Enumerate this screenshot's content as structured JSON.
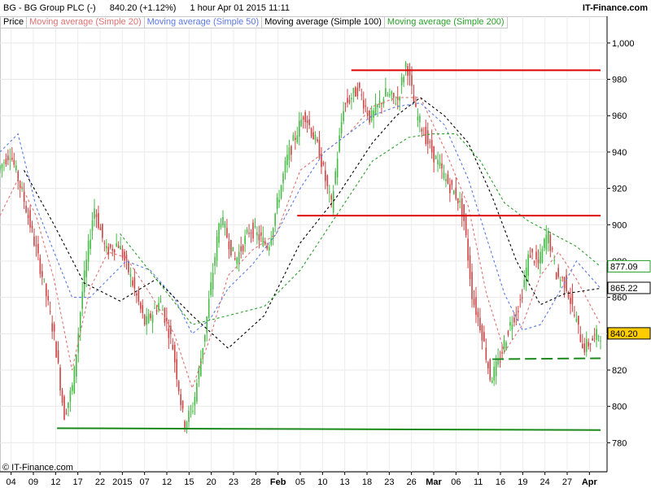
{
  "header": {
    "symbol": "BG - BG Group PLC (-)",
    "price_change": "840.20 (+1.12%)",
    "interval_date": "1 hour  Apr 01 2015 11:11",
    "source": "IT-Finance.com"
  },
  "legend": [
    {
      "label": "Price",
      "color": "#000000"
    },
    {
      "label": "Moving average (Simple 20)",
      "color": "#e07070"
    },
    {
      "label": "Moving average (Simple 50)",
      "color": "#5a78e6"
    },
    {
      "label": "Moving average (Simple 100)",
      "color": "#000000"
    },
    {
      "label": "Moving average (Simple 200)",
      "color": "#2aa02a"
    }
  ],
  "credit": "© IT-Finance.com",
  "chart_data": {
    "type": "candlestick",
    "ylim": [
      773,
      1008
    ],
    "y_ticks": [
      "780",
      "800",
      "820",
      "840",
      "860",
      "880",
      "900",
      "920",
      "940",
      "960",
      "980",
      "1,000"
    ],
    "x_ticks": [
      "04",
      "09",
      "12",
      "17",
      "22",
      "2015",
      "07",
      "12",
      "15",
      "20",
      "23",
      "28",
      "Feb",
      "05",
      "10",
      "13",
      "18",
      "23",
      "26",
      "Mar",
      "06",
      "11",
      "16",
      "19",
      "24",
      "27",
      "Apr"
    ],
    "price_path": [
      {
        "x": 0,
        "y": 930
      },
      {
        "x": 0.02,
        "y": 940
      },
      {
        "x": 0.04,
        "y": 918
      },
      {
        "x": 0.055,
        "y": 898
      },
      {
        "x": 0.075,
        "y": 870
      },
      {
        "x": 0.095,
        "y": 836
      },
      {
        "x": 0.11,
        "y": 795
      },
      {
        "x": 0.125,
        "y": 812
      },
      {
        "x": 0.14,
        "y": 862
      },
      {
        "x": 0.16,
        "y": 910
      },
      {
        "x": 0.18,
        "y": 885
      },
      {
        "x": 0.2,
        "y": 890
      },
      {
        "x": 0.22,
        "y": 872
      },
      {
        "x": 0.245,
        "y": 845
      },
      {
        "x": 0.27,
        "y": 858
      },
      {
        "x": 0.29,
        "y": 835
      },
      {
        "x": 0.31,
        "y": 790
      },
      {
        "x": 0.325,
        "y": 800
      },
      {
        "x": 0.345,
        "y": 842
      },
      {
        "x": 0.37,
        "y": 905
      },
      {
        "x": 0.395,
        "y": 880
      },
      {
        "x": 0.42,
        "y": 898
      },
      {
        "x": 0.45,
        "y": 888
      },
      {
        "x": 0.48,
        "y": 935
      },
      {
        "x": 0.51,
        "y": 962
      },
      {
        "x": 0.535,
        "y": 940
      },
      {
        "x": 0.555,
        "y": 910
      },
      {
        "x": 0.575,
        "y": 965
      },
      {
        "x": 0.6,
        "y": 975
      },
      {
        "x": 0.62,
        "y": 958
      },
      {
        "x": 0.645,
        "y": 972
      },
      {
        "x": 0.665,
        "y": 968
      },
      {
        "x": 0.68,
        "y": 990
      },
      {
        "x": 0.695,
        "y": 962
      },
      {
        "x": 0.72,
        "y": 942
      },
      {
        "x": 0.745,
        "y": 925
      },
      {
        "x": 0.765,
        "y": 915
      },
      {
        "x": 0.775,
        "y": 905
      },
      {
        "x": 0.79,
        "y": 860
      },
      {
        "x": 0.805,
        "y": 842
      },
      {
        "x": 0.82,
        "y": 815
      },
      {
        "x": 0.835,
        "y": 825
      },
      {
        "x": 0.85,
        "y": 843
      },
      {
        "x": 0.87,
        "y": 858
      },
      {
        "x": 0.885,
        "y": 885
      },
      {
        "x": 0.9,
        "y": 878
      },
      {
        "x": 0.915,
        "y": 896
      },
      {
        "x": 0.93,
        "y": 872
      },
      {
        "x": 0.945,
        "y": 868
      },
      {
        "x": 0.96,
        "y": 850
      },
      {
        "x": 0.975,
        "y": 832
      },
      {
        "x": 1,
        "y": 840
      }
    ],
    "series": [
      {
        "name": "Moving average (Simple 20)",
        "color": "#e07070",
        "dash": "3,3",
        "points": [
          {
            "x": 0,
            "y": 905
          },
          {
            "x": 0.03,
            "y": 925
          },
          {
            "x": 0.06,
            "y": 905
          },
          {
            "x": 0.09,
            "y": 870
          },
          {
            "x": 0.12,
            "y": 820
          },
          {
            "x": 0.15,
            "y": 865
          },
          {
            "x": 0.18,
            "y": 885
          },
          {
            "x": 0.21,
            "y": 882
          },
          {
            "x": 0.25,
            "y": 862
          },
          {
            "x": 0.29,
            "y": 840
          },
          {
            "x": 0.32,
            "y": 810
          },
          {
            "x": 0.35,
            "y": 838
          },
          {
            "x": 0.38,
            "y": 872
          },
          {
            "x": 0.42,
            "y": 886
          },
          {
            "x": 0.46,
            "y": 895
          },
          {
            "x": 0.5,
            "y": 930
          },
          {
            "x": 0.54,
            "y": 940
          },
          {
            "x": 0.58,
            "y": 950
          },
          {
            "x": 0.62,
            "y": 965
          },
          {
            "x": 0.66,
            "y": 970
          },
          {
            "x": 0.7,
            "y": 970
          },
          {
            "x": 0.74,
            "y": 942
          },
          {
            "x": 0.78,
            "y": 910
          },
          {
            "x": 0.81,
            "y": 862
          },
          {
            "x": 0.84,
            "y": 830
          },
          {
            "x": 0.87,
            "y": 845
          },
          {
            "x": 0.9,
            "y": 872
          },
          {
            "x": 0.93,
            "y": 885
          },
          {
            "x": 0.96,
            "y": 870
          },
          {
            "x": 1,
            "y": 845
          }
        ]
      },
      {
        "name": "Moving average (Simple 50)",
        "color": "#5a78e6",
        "dash": "3,3",
        "points": [
          {
            "x": 0,
            "y": 940
          },
          {
            "x": 0.03,
            "y": 950
          },
          {
            "x": 0.06,
            "y": 910
          },
          {
            "x": 0.09,
            "y": 885
          },
          {
            "x": 0.12,
            "y": 860
          },
          {
            "x": 0.15,
            "y": 860
          },
          {
            "x": 0.18,
            "y": 870
          },
          {
            "x": 0.21,
            "y": 880
          },
          {
            "x": 0.25,
            "y": 875
          },
          {
            "x": 0.29,
            "y": 860
          },
          {
            "x": 0.32,
            "y": 840
          },
          {
            "x": 0.35,
            "y": 848
          },
          {
            "x": 0.38,
            "y": 865
          },
          {
            "x": 0.42,
            "y": 878
          },
          {
            "x": 0.46,
            "y": 895
          },
          {
            "x": 0.5,
            "y": 920
          },
          {
            "x": 0.54,
            "y": 940
          },
          {
            "x": 0.58,
            "y": 950
          },
          {
            "x": 0.62,
            "y": 960
          },
          {
            "x": 0.66,
            "y": 965
          },
          {
            "x": 0.7,
            "y": 967
          },
          {
            "x": 0.74,
            "y": 955
          },
          {
            "x": 0.78,
            "y": 925
          },
          {
            "x": 0.81,
            "y": 893
          },
          {
            "x": 0.84,
            "y": 862
          },
          {
            "x": 0.87,
            "y": 842
          },
          {
            "x": 0.9,
            "y": 845
          },
          {
            "x": 0.93,
            "y": 862
          },
          {
            "x": 0.96,
            "y": 880
          },
          {
            "x": 1,
            "y": 865
          }
        ]
      },
      {
        "name": "Moving average (Simple 100)",
        "color": "#000000",
        "dash": "3,3",
        "points": [
          {
            "x": 0.04,
            "y": 930
          },
          {
            "x": 0.09,
            "y": 900
          },
          {
            "x": 0.14,
            "y": 868
          },
          {
            "x": 0.2,
            "y": 858
          },
          {
            "x": 0.26,
            "y": 870
          },
          {
            "x": 0.32,
            "y": 850
          },
          {
            "x": 0.38,
            "y": 832
          },
          {
            "x": 0.44,
            "y": 850
          },
          {
            "x": 0.5,
            "y": 890
          },
          {
            "x": 0.56,
            "y": 915
          },
          {
            "x": 0.62,
            "y": 945
          },
          {
            "x": 0.66,
            "y": 960
          },
          {
            "x": 0.7,
            "y": 970
          },
          {
            "x": 0.74,
            "y": 960
          },
          {
            "x": 0.78,
            "y": 945
          },
          {
            "x": 0.82,
            "y": 915
          },
          {
            "x": 0.86,
            "y": 880
          },
          {
            "x": 0.9,
            "y": 856
          },
          {
            "x": 0.94,
            "y": 862
          },
          {
            "x": 1,
            "y": 865
          }
        ]
      },
      {
        "name": "Moving average (Simple 200)",
        "color": "#2aa02a",
        "dash": "3,3",
        "points": [
          {
            "x": 0.2,
            "y": 895
          },
          {
            "x": 0.26,
            "y": 870
          },
          {
            "x": 0.32,
            "y": 845
          },
          {
            "x": 0.38,
            "y": 850
          },
          {
            "x": 0.44,
            "y": 855
          },
          {
            "x": 0.5,
            "y": 875
          },
          {
            "x": 0.56,
            "y": 905
          },
          {
            "x": 0.62,
            "y": 935
          },
          {
            "x": 0.68,
            "y": 948
          },
          {
            "x": 0.72,
            "y": 950
          },
          {
            "x": 0.76,
            "y": 950
          },
          {
            "x": 0.8,
            "y": 935
          },
          {
            "x": 0.84,
            "y": 912
          },
          {
            "x": 0.88,
            "y": 902
          },
          {
            "x": 0.92,
            "y": 895
          },
          {
            "x": 0.96,
            "y": 888
          },
          {
            "x": 1,
            "y": 877
          }
        ]
      }
    ],
    "horizontal_lines": [
      {
        "y1": 985,
        "y2": 985,
        "x1": 0.585,
        "x2": 1,
        "color": "#dd0000",
        "style": "solid"
      },
      {
        "y1": 905,
        "y2": 905,
        "x1": 0.495,
        "x2": 1,
        "color": "#dd0000",
        "style": "solid"
      },
      {
        "y1": 788,
        "y2": 787,
        "x1": 0.095,
        "x2": 1,
        "color": "#1a8a1a",
        "style": "solid"
      },
      {
        "y1": 826,
        "y2": 826.5,
        "x1": 0.82,
        "x2": 1,
        "color": "#1a8a1a",
        "style": "dashed"
      }
    ],
    "price_labels": [
      {
        "text": "877.09",
        "value": 877.09,
        "color": "#2aa02a",
        "fill": "#ffffff"
      },
      {
        "text": "865.22",
        "value": 865.22,
        "color": "#000000",
        "fill": "#ffffff"
      },
      {
        "text": "840.20",
        "value": 840.2,
        "color": "#000000",
        "fill": "#ffcc00"
      }
    ]
  }
}
